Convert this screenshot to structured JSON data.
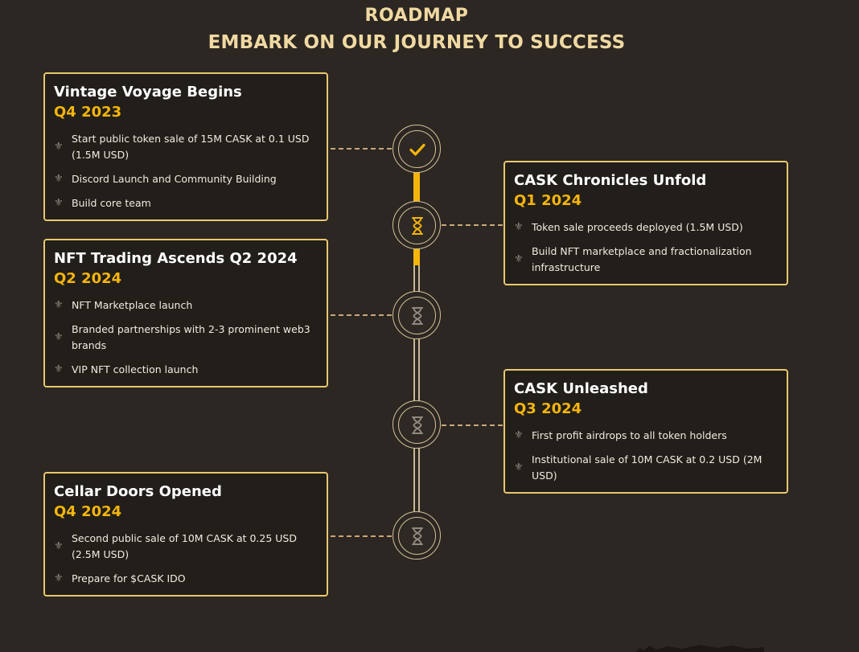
{
  "header": {
    "eyebrow": "ROADMAP",
    "headline": "EMBARK ON OUR JOURNEY TO SUCCESS"
  },
  "milestones": [
    {
      "title": "Vintage Voyage Begins",
      "quarter": "Q4 2023",
      "status": "completed",
      "icon": "check-icon",
      "items": [
        "Start public token sale of 15M CASK at 0.1 USD (1.5M USD)",
        "Discord Launch and Community Building",
        "Build core team"
      ]
    },
    {
      "title": "CASK Chronicles Unfold",
      "quarter": "Q1 2024",
      "status": "in-progress",
      "icon": "hourglass-icon",
      "items": [
        "Token sale proceeds deployed (1.5M USD)",
        "Build NFT marketplace and fractionalization infrastructure"
      ]
    },
    {
      "title": "NFT Trading Ascends Q2 2024",
      "quarter": "Q2 2024",
      "status": "upcoming",
      "icon": "hourglass-icon",
      "items": [
        "NFT Marketplace launch",
        "Branded partnerships with 2-3 prominent web3 brands",
        "VIP NFT collection launch"
      ]
    },
    {
      "title": "CASK Unleashed",
      "quarter": "Q3 2024",
      "status": "upcoming",
      "icon": "hourglass-icon",
      "items": [
        "First profit airdrops to all token holders",
        "Institutional sale of 10M CASK at 0.2 USD (2M USD)"
      ]
    },
    {
      "title": "Cellar Doors Opened",
      "quarter": "Q4 2024",
      "status": "upcoming",
      "icon": "hourglass-icon",
      "items": [
        "Second public sale of 10M CASK at 0.25 USD (2.5M USD)",
        "Prepare for $CASK IDO"
      ]
    }
  ],
  "colors": {
    "background": "#2c2722",
    "accent": "#f5b50c",
    "card_border": "#e8c86e",
    "heading": "#f0d9a2",
    "timeline": "#c9b896",
    "muted_icon": "#8f8980"
  },
  "icons": {
    "bullet": "fleur-de-lis-icon"
  }
}
